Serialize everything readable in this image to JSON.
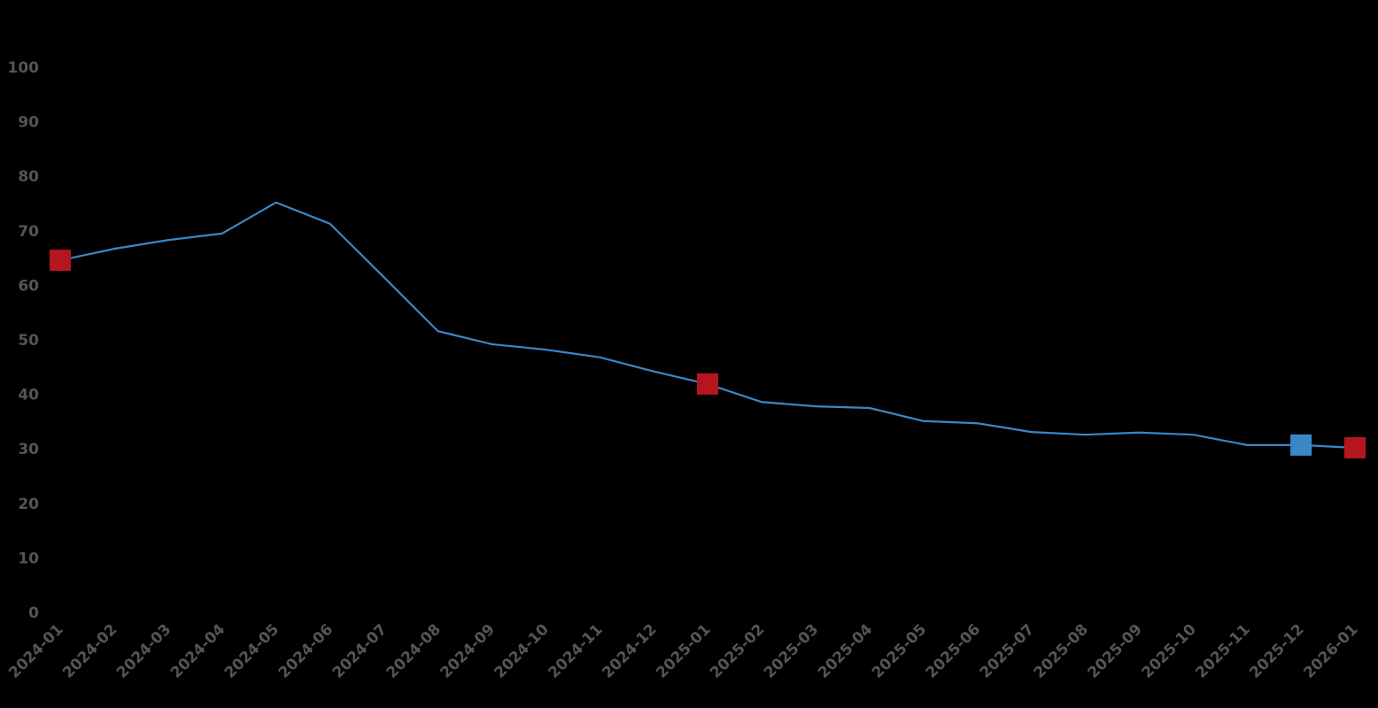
{
  "chart_data": {
    "type": "line",
    "title": "",
    "xlabel": "",
    "ylabel": "",
    "ylim": [
      0,
      100
    ],
    "yticks": [
      "0",
      "10",
      "20",
      "30",
      "40",
      "50",
      "60",
      "70",
      "80",
      "90",
      "100"
    ],
    "grid": false,
    "categories": [
      "2024-01",
      "2024-02",
      "2024-03",
      "2024-04",
      "2024-05",
      "2024-06",
      "2024-07",
      "2024-08",
      "2024-09",
      "2024-10",
      "2024-11",
      "2024-12",
      "2025-01",
      "2025-02",
      "2025-03",
      "2025-04",
      "2025-05",
      "2025-06",
      "2025-07",
      "2025-08",
      "2025-09",
      "2025-10",
      "2025-11",
      "2025-12",
      "2026-01"
    ],
    "series": [
      {
        "values": [
          64.6,
          66.7,
          68.3,
          69.5,
          75.2,
          71.3,
          61.5,
          51.6,
          49.2,
          48.2,
          46.8,
          44.2,
          41.9,
          38.6,
          37.8,
          37.5,
          35.1,
          34.7,
          33.1,
          32.6,
          33.0,
          32.6,
          30.7,
          30.7,
          30.2
        ],
        "color": "#3a87c8"
      }
    ],
    "highlight_markers": [
      {
        "category": "2024-01",
        "value": 64.6,
        "color": "#b5161e"
      },
      {
        "category": "2025-01",
        "value": 41.9,
        "color": "#b5161e"
      },
      {
        "category": "2025-12",
        "value": 30.7,
        "color": "#3a87c8"
      },
      {
        "category": "2026-01",
        "value": 30.2,
        "color": "#b5161e"
      }
    ]
  }
}
